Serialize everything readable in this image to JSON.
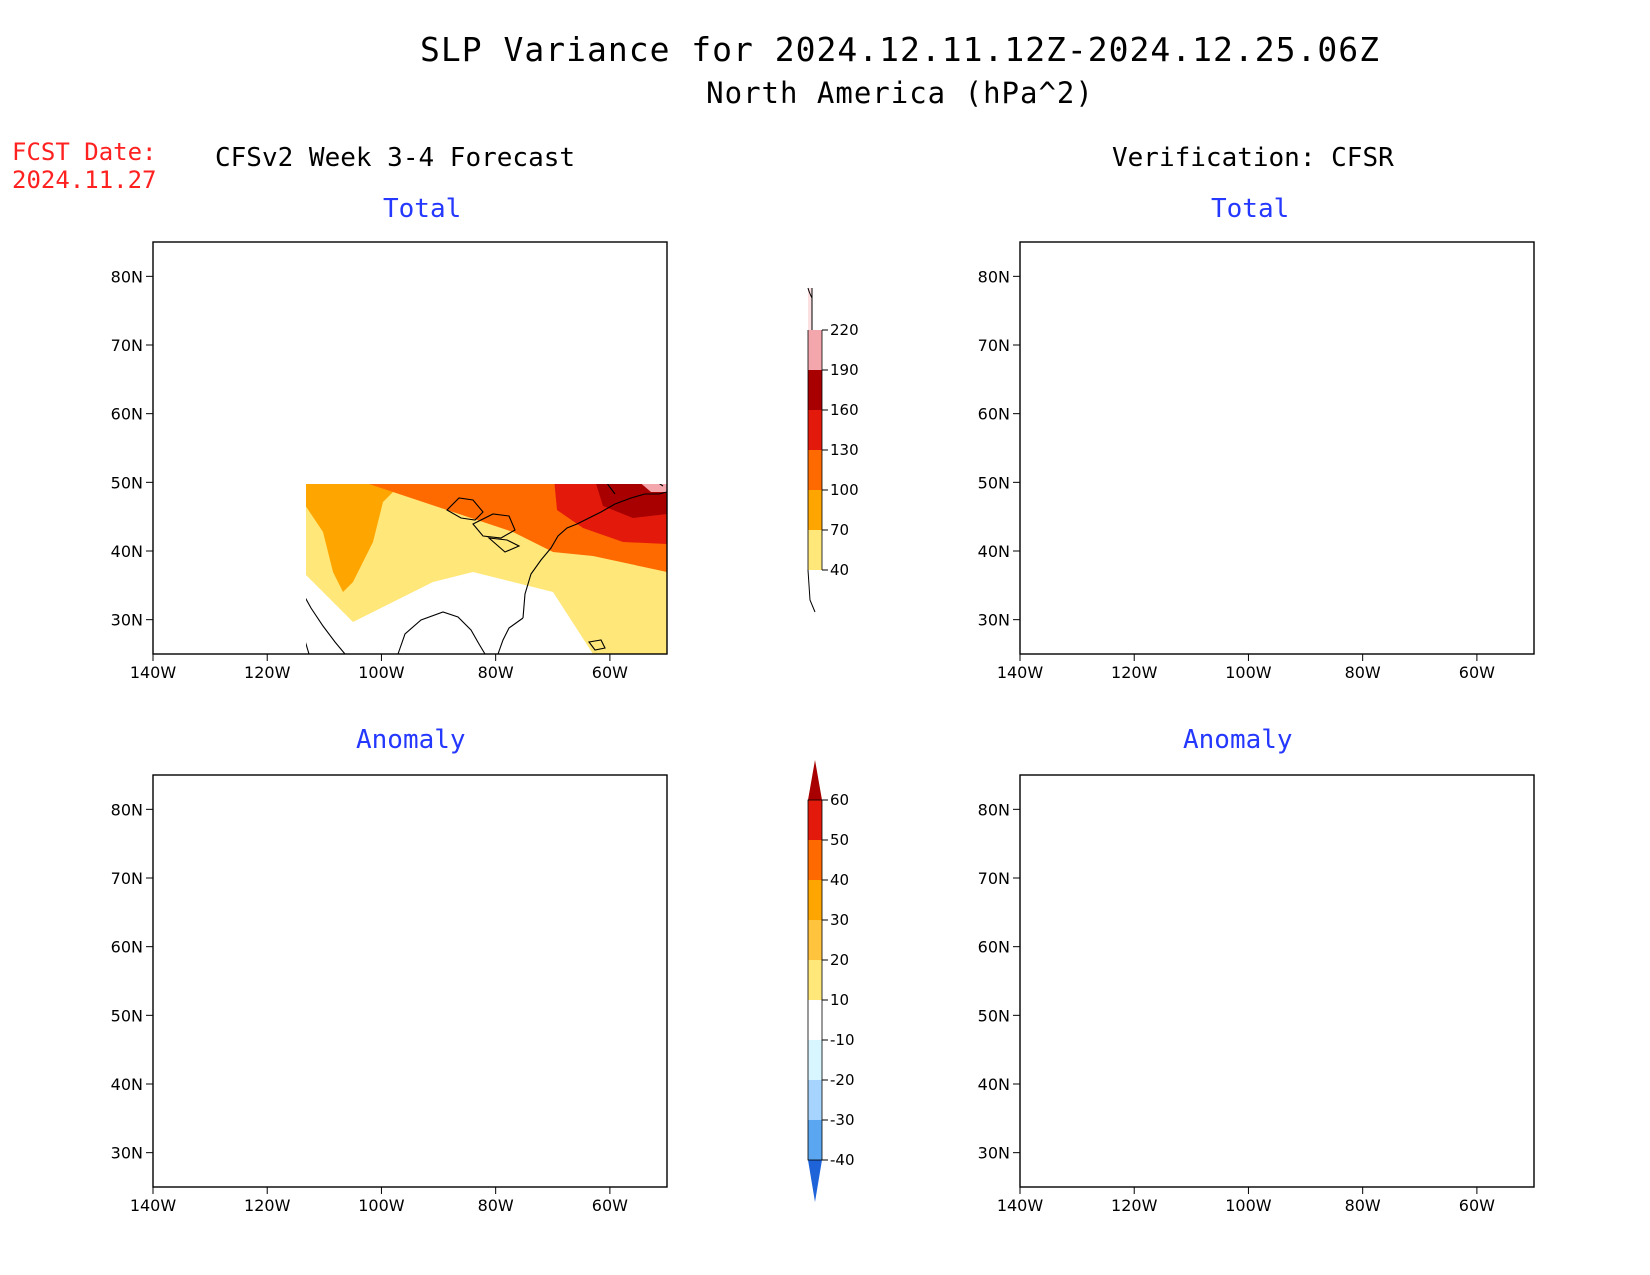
{
  "title_line1": "SLP Variance for 2024.12.11.12Z-2024.12.25.06Z",
  "title_line2": "North America (hPa^2)",
  "fcst_date_label": "FCST Date:",
  "fcst_date_value": "2024.11.27",
  "left_header": "CFSv2 Week 3-4 Forecast",
  "right_header": "Verification: CFSR",
  "panels": {
    "fcst_total_title": "Total",
    "fcst_anom_title": "Anomaly",
    "verif_total_title": "Total",
    "verif_anom_title": "Anomaly"
  },
  "axes": {
    "lat_labels": [
      "80N",
      "70N",
      "60N",
      "50N",
      "40N",
      "30N"
    ],
    "lon_labels": [
      "140W",
      "120W",
      "100W",
      "80W",
      "60W"
    ],
    "lat_range": [
      25,
      85
    ],
    "lon_range": [
      -140,
      -50
    ]
  },
  "colorbar_total": {
    "levels": [
      "40",
      "70",
      "100",
      "130",
      "160",
      "190",
      "220"
    ],
    "colors": [
      "#ffe77a",
      "#ffa500",
      "#ff6a00",
      "#e31a0b",
      "#a80000",
      "#f4a6ad",
      "#fde0e2"
    ]
  },
  "colorbar_anomaly": {
    "levels": [
      "60",
      "50",
      "40",
      "30",
      "20",
      "10",
      "-10",
      "-20",
      "-30",
      "-40"
    ],
    "colors_top_to_bottom": [
      "#a80000",
      "#e31a0b",
      "#ff6a00",
      "#ffa500",
      "#ffc33d",
      "#ffe77a",
      "#ffffff",
      "#d8f6ff",
      "#a6d4ff",
      "#5aa6f0",
      "#1e64d8"
    ]
  },
  "palette": {
    "total_40": "#ffe77a",
    "total_70": "#ffa500",
    "total_100": "#ff6a00",
    "total_130": "#e31a0b",
    "total_160": "#a80000",
    "total_190": "#f4a6ad",
    "total_220": "#fde0e2",
    "anom_pos10": "#ffe77a",
    "anom_pos20": "#ffc33d",
    "anom_pos30": "#ffa500",
    "anom_pos40": "#ff6a00",
    "anom_pos50": "#e31a0b",
    "anom_pos60": "#a80000",
    "anom_neg10": "#d8f6ff",
    "anom_neg20": "#a6d4ff",
    "anom_neg30": "#5aa6f0",
    "anom_neg40": "#1e64d8"
  }
}
